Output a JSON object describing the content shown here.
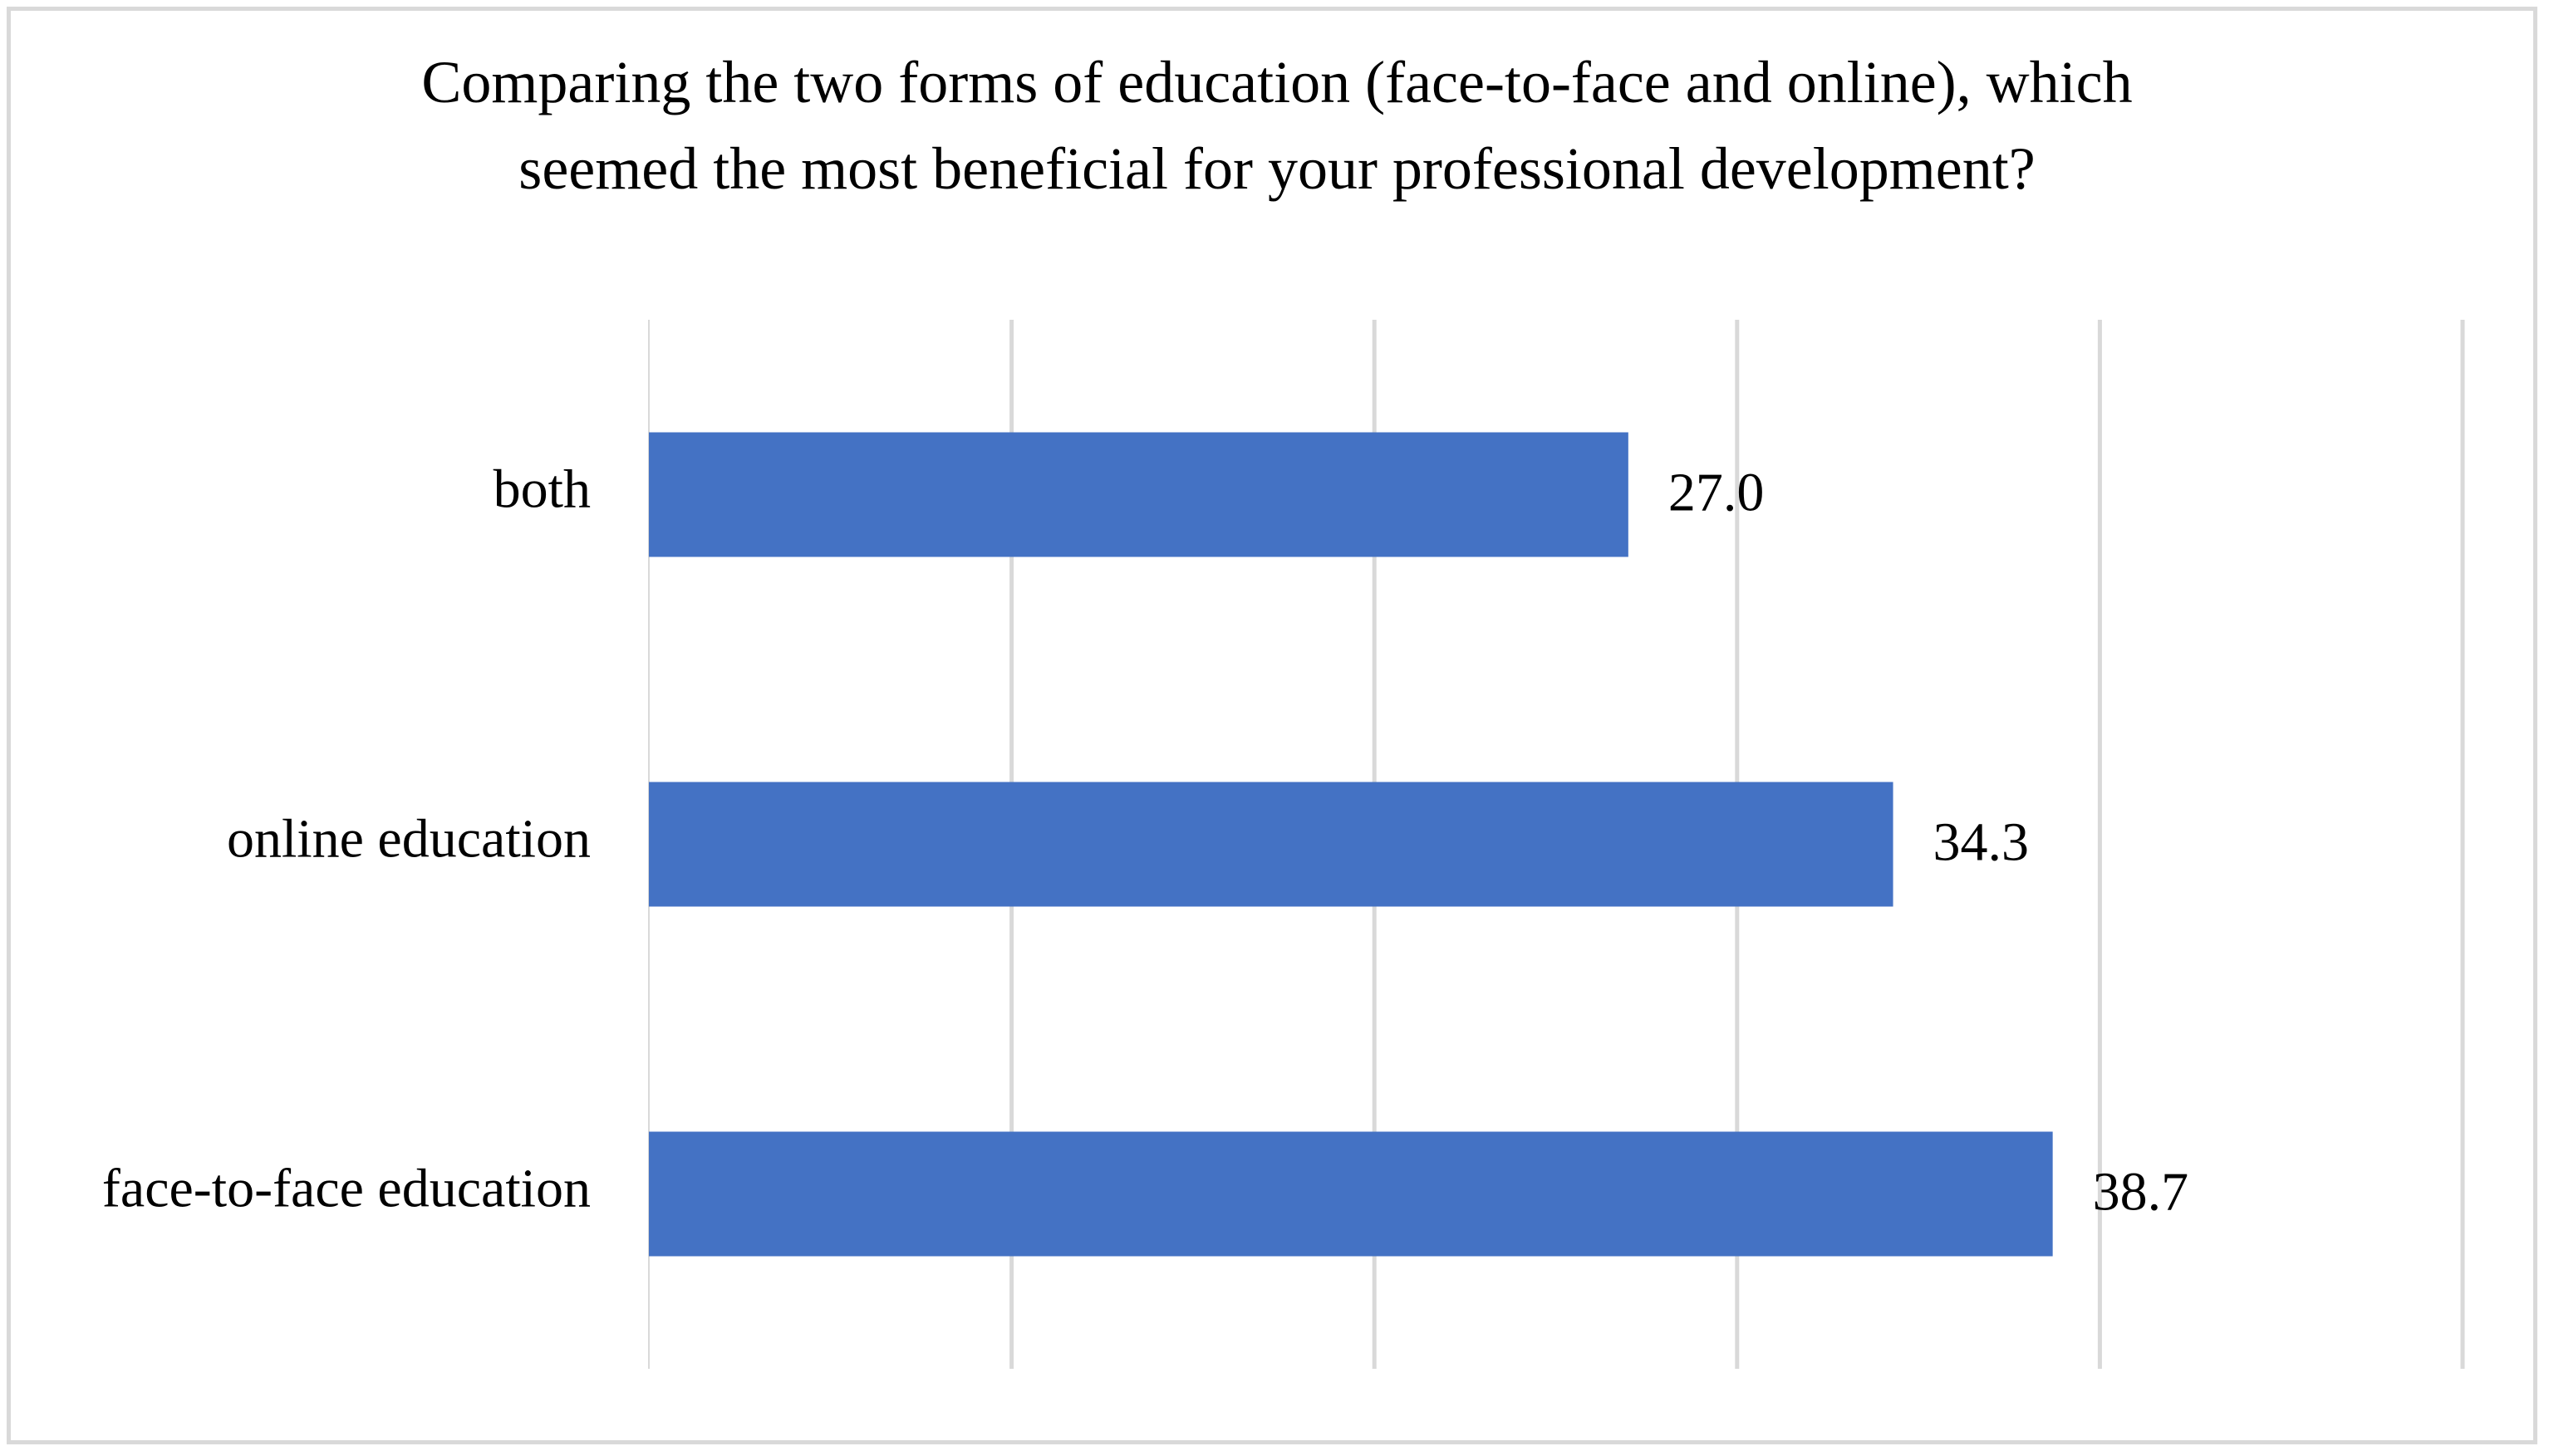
{
  "chart_data": {
    "type": "bar",
    "orientation": "horizontal",
    "title": "Comparing the two forms of education (face-to-face and online), which seemed the most beneficial for your professional development?",
    "title_lines": [
      "Comparing the two forms of education (face-to-face and online), which",
      "seemed the most beneficial for your professional development?"
    ],
    "categories": [
      "both",
      "online education",
      "face-to-face education"
    ],
    "values": [
      27.0,
      34.3,
      38.7
    ],
    "value_labels": [
      "27.0",
      "34.3",
      "38.7"
    ],
    "xlim": [
      0,
      50
    ],
    "grid": true,
    "legend": "none",
    "xlabel": "",
    "ylabel": "",
    "bar_color": "#4472c4",
    "grid_color": "#d9d9d9"
  }
}
